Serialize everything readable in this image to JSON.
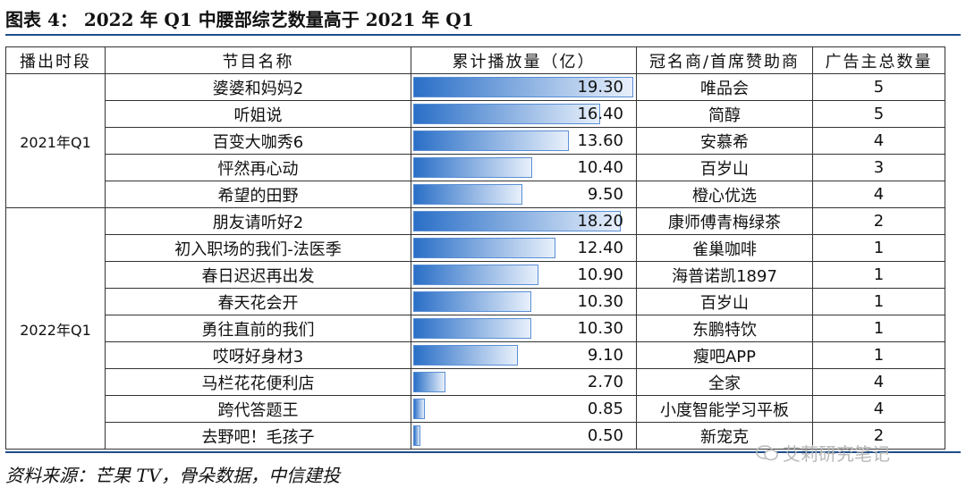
{
  "title": "图表 4：   2022 年 Q1 中腰部综艺数量高于 2021 年 Q1",
  "headers": [
    "播出时段",
    "节目名称",
    "累计播放量（亿）",
    "冠名商/首席赞助商",
    "广告主总数量"
  ],
  "max_value": 19.3,
  "groups": [
    {
      "period": "2021年Q1",
      "rows": [
        {
          "name": "婆婆和妈妈2",
          "value": "19.30",
          "sponsor": "唯品会",
          "count": "5"
        },
        {
          "name": "听姐说",
          "value": "16.40",
          "sponsor": "简醇",
          "count": "5"
        },
        {
          "name": "百变大咖秀6",
          "value": "13.60",
          "sponsor": "安慕希",
          "count": "4"
        },
        {
          "name": "怦然再心动",
          "value": "10.40",
          "sponsor": "百岁山",
          "count": "3"
        },
        {
          "name": "希望的田野",
          "value": "9.50",
          "sponsor": "橙心优选",
          "count": "4"
        }
      ]
    },
    {
      "period": "2022年Q1",
      "rows": [
        {
          "name": "朋友请听好2",
          "value": "18.20",
          "sponsor": "康师傅青梅绿茶",
          "count": "2"
        },
        {
          "name": "初入职场的我们-法医季",
          "value": "12.40",
          "sponsor": "雀巢咖啡",
          "count": "1"
        },
        {
          "name": "春日迟迟再出发",
          "value": "10.90",
          "sponsor": "海普诺凯1897",
          "count": "1"
        },
        {
          "name": "春天花会开",
          "value": "10.30",
          "sponsor": "百岁山",
          "count": "1"
        },
        {
          "name": "勇往直前的我们",
          "value": "10.30",
          "sponsor": "东鹏特饮",
          "count": "1"
        },
        {
          "name": "哎呀好身材3",
          "value": "9.10",
          "sponsor": "瘦吧APP",
          "count": "1"
        },
        {
          "name": "马栏花花便利店",
          "value": "2.70",
          "sponsor": "全家",
          "count": "4"
        },
        {
          "name": "跨代答题王",
          "value": "0.85",
          "sponsor": "小度智能学习平板",
          "count": "4"
        },
        {
          "name": "去野吧！毛孩子",
          "value": "0.50",
          "sponsor": "新宠克",
          "count": "2"
        }
      ]
    }
  ],
  "source": "资料来源：芒果 TV，骨朵数据，中信建投",
  "watermark": "艾莉研究笔记"
}
